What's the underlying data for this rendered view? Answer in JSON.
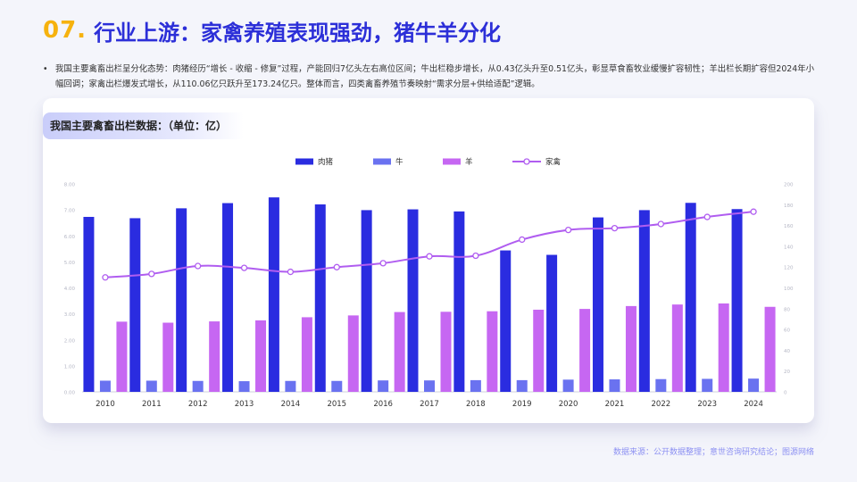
{
  "header": {
    "number": "07.",
    "title": "行业上游：家禽养殖表现强劲，猪牛羊分化"
  },
  "summary": {
    "bullet": "•",
    "text": "我国主要禽畜出栏呈分化态势：肉猪经历“增长 - 收缩 - 修复”过程，产能回归7亿头左右高位区间；牛出栏稳步增长，从0.43亿头升至0.51亿头，彰显草食畜牧业缓慢扩容韧性；羊出栏长期扩容但2024年小幅回调；家禽出栏爆发式增长，从110.06亿只跃升至173.24亿只。整体而言，四类禽畜养殖节奏映射“需求分层+供给适配”逻辑。"
  },
  "card": {
    "title": "我国主要禽畜出栏数据：（单位：亿）"
  },
  "source": "数据来源：公开数据整理；意世咨询研究结论；图源网络",
  "chart_data": {
    "type": "bar",
    "categories": [
      "2010",
      "2011",
      "2012",
      "2013",
      "2014",
      "2015",
      "2016",
      "2017",
      "2018",
      "2019",
      "2020",
      "2021",
      "2022",
      "2023",
      "2024"
    ],
    "series": [
      {
        "name": "肉猪",
        "type": "bar",
        "axis": "left",
        "color": "#2a2ce0",
        "values": [
          6.73,
          6.68,
          7.06,
          7.26,
          7.48,
          7.21,
          6.99,
          7.02,
          6.94,
          5.44,
          5.27,
          6.71,
          6.99,
          7.27,
          7.03
        ]
      },
      {
        "name": "牛",
        "type": "bar",
        "axis": "left",
        "color": "#6a72f0",
        "values": [
          0.43,
          0.43,
          0.42,
          0.41,
          0.42,
          0.42,
          0.44,
          0.44,
          0.45,
          0.45,
          0.47,
          0.48,
          0.49,
          0.5,
          0.51
        ]
      },
      {
        "name": "羊",
        "type": "bar",
        "axis": "left",
        "color": "#c667f2",
        "values": [
          2.7,
          2.66,
          2.71,
          2.75,
          2.87,
          2.94,
          3.07,
          3.08,
          3.1,
          3.16,
          3.19,
          3.3,
          3.36,
          3.4,
          3.27
        ]
      },
      {
        "name": "家禽",
        "type": "line",
        "axis": "right",
        "color": "#b05df0",
        "values": [
          110.06,
          113.4,
          121.0,
          119.2,
          115.4,
          119.9,
          123.7,
          130.3,
          130.9,
          146.4,
          155.7,
          157.4,
          161.4,
          168.2,
          173.24
        ]
      }
    ],
    "left_axis": {
      "min": 0,
      "max": 8,
      "ticks": [
        "0.00",
        "1.00",
        "2.00",
        "3.00",
        "4.00",
        "5.00",
        "6.00",
        "7.00",
        "8.00"
      ]
    },
    "right_axis": {
      "min": 0,
      "max": 200,
      "ticks": [
        "0",
        "20",
        "40",
        "60",
        "80",
        "100",
        "120",
        "140",
        "160",
        "180",
        "200"
      ]
    },
    "legend_position": "top-center",
    "grid": false
  }
}
